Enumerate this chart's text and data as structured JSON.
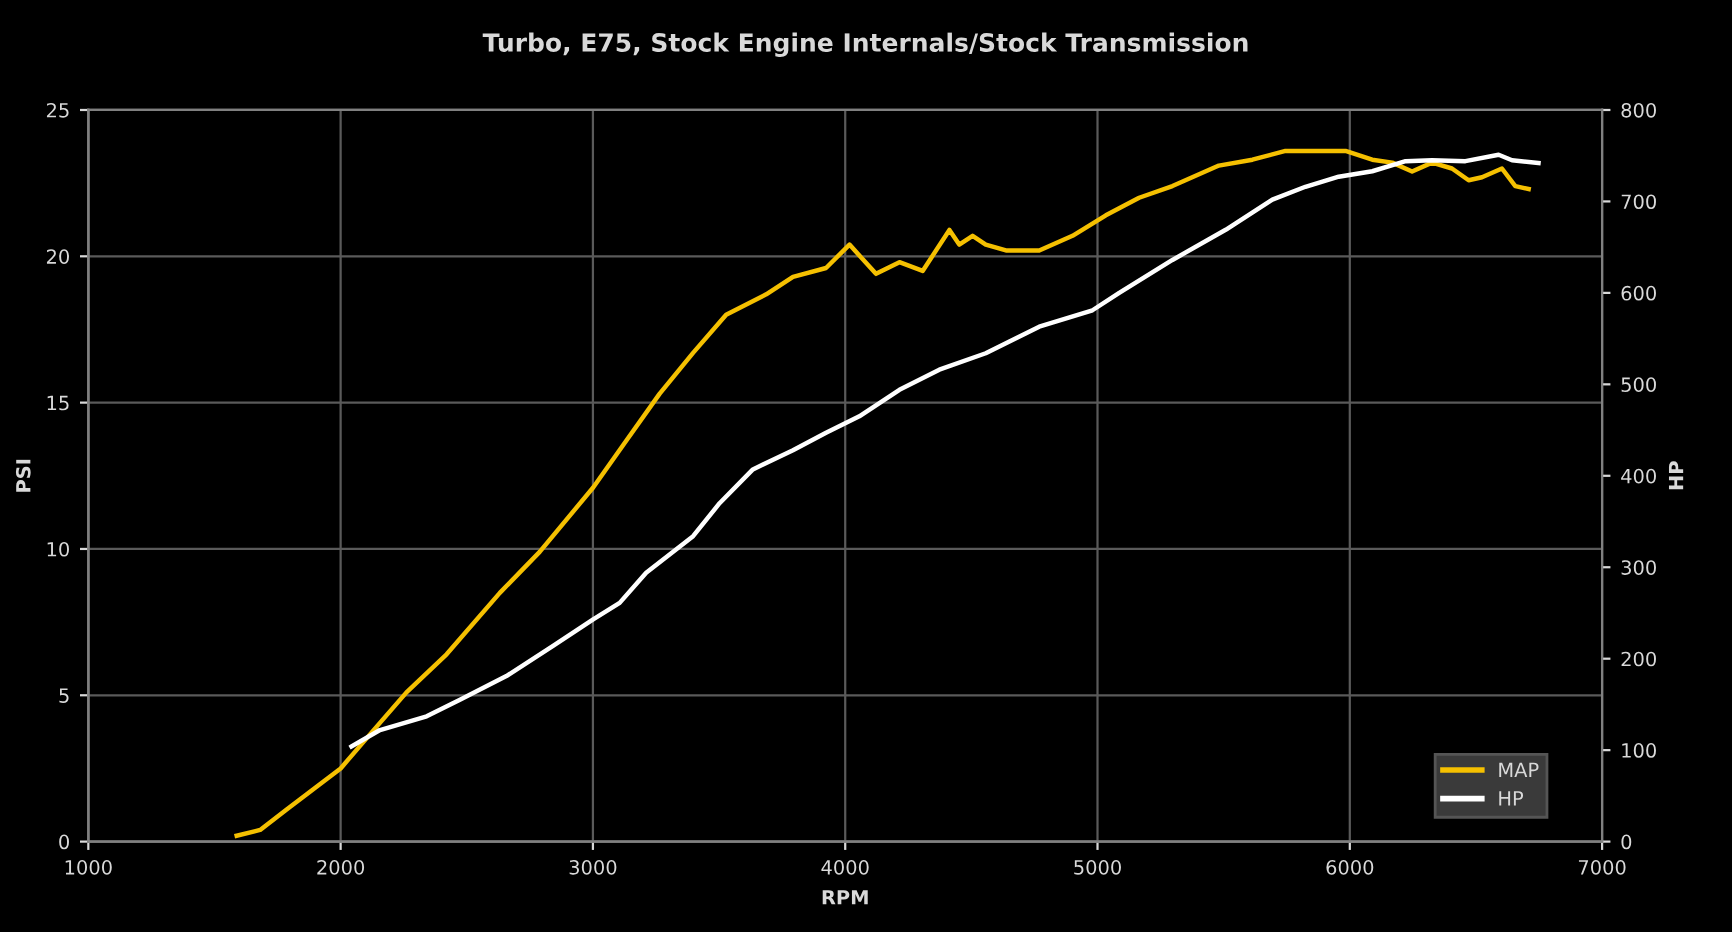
{
  "chart_data": {
    "type": "line",
    "title": "Turbo, E75, Stock Engine Internals/Stock Transmission",
    "xlabel": "RPM",
    "ylabel": "PSI",
    "y2label": "HP",
    "xlim": [
      1000,
      7000
    ],
    "xticks": [
      1000,
      2000,
      3000,
      4000,
      5000,
      6000,
      7000
    ],
    "ylim": [
      0,
      25
    ],
    "yticks": [
      0,
      5,
      10,
      15,
      20,
      25
    ],
    "y2lim": [
      0,
      800
    ],
    "y2ticks": [
      0,
      100,
      200,
      300,
      400,
      500,
      600,
      700,
      800
    ],
    "grid": true,
    "legend": "bottom right",
    "line_style": "solid",
    "series": [
      {
        "name": "MAP",
        "color": "#f5c000",
        "x": [
          1588,
          1681,
          1786,
          2000,
          2130,
          2261,
          2420,
          2631,
          2789,
          3001,
          3132,
          3264,
          3397,
          3528,
          3687,
          3793,
          3924,
          4017,
          4122,
          4215,
          4307,
          4413,
          4452,
          4505,
          4557,
          4637,
          4769,
          4901,
          5033,
          5165,
          5297,
          5481,
          5614,
          5745,
          5851,
          5983,
          6089,
          6168,
          6247,
          6326,
          6405,
          6471,
          6524,
          6603,
          6656,
          6709
        ],
        "values": [
          0.2,
          0.4,
          1.1,
          2.5,
          3.8,
          5.1,
          6.4,
          8.5,
          9.9,
          12.1,
          13.7,
          15.3,
          16.7,
          18.0,
          18.7,
          19.3,
          19.6,
          20.4,
          19.4,
          19.8,
          19.5,
          20.9,
          20.4,
          20.7,
          20.4,
          20.2,
          20.2,
          20.7,
          21.4,
          22.0,
          22.4,
          23.1,
          23.3,
          23.6,
          23.6,
          23.6,
          23.3,
          23.2,
          22.9,
          23.2,
          23.0,
          22.6,
          22.7,
          23.0,
          22.4,
          22.3
        ]
      },
      {
        "name": "HP",
        "color": "#ffffff",
        "axis": "y2",
        "x": [
          2043,
          2156,
          2341,
          2473,
          2657,
          2842,
          3001,
          3106,
          3211,
          3397,
          3502,
          3634,
          3793,
          3924,
          4056,
          4215,
          4373,
          4557,
          4769,
          4980,
          5086,
          5297,
          5508,
          5693,
          5824,
          5956,
          6089,
          6221,
          6326,
          6458,
          6590,
          6643,
          6748
        ],
        "values": [
          104,
          122,
          137,
          155,
          181,
          214,
          243,
          261,
          294,
          334,
          370,
          407,
          428,
          447,
          465,
          494,
          516,
          534,
          563,
          581,
          600,
          636,
          669,
          702,
          716,
          727,
          733,
          744,
          745,
          744,
          751,
          745,
          742
        ]
      }
    ]
  }
}
